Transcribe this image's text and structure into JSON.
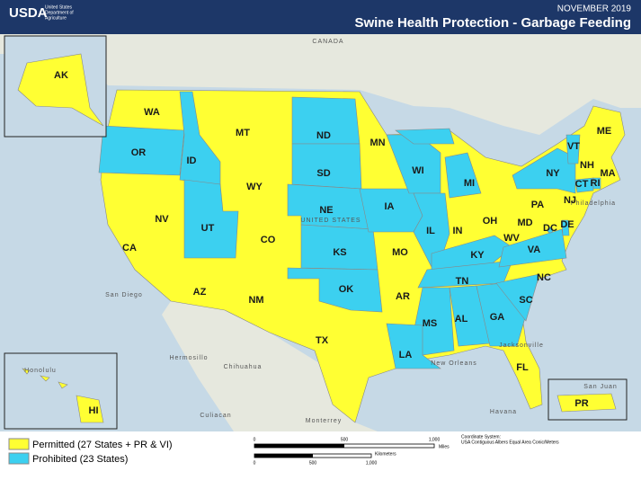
{
  "header": {
    "logo": "USDA",
    "agency": [
      "United States",
      "Department of",
      "Agriculture"
    ],
    "date": "NOVEMBER 2019",
    "title": "Swine Health Protection - Garbage Feeding"
  },
  "places": [
    "CANADA",
    "UNITED STATES",
    "Honolulu",
    "San Juan",
    "Monterrey",
    "Chihuahua",
    "Culiacan",
    "Hermosillo",
    "Havana",
    "New Orleans",
    "Jacksonville",
    "Philadelphia",
    "San Diego"
  ],
  "states": [
    "AK",
    "WA",
    "OR",
    "ID",
    "MT",
    "ND",
    "MN",
    "WY",
    "SD",
    "WI",
    "MI",
    "NY",
    "VT",
    "NH",
    "ME",
    "MA",
    "CT",
    "RI",
    "NJ",
    "PA",
    "NV",
    "UT",
    "CO",
    "NE",
    "IA",
    "IL",
    "IN",
    "OH",
    "MD",
    "DE",
    "DC",
    "WV",
    "VA",
    "KS",
    "MO",
    "KY",
    "CA",
    "AZ",
    "NM",
    "OK",
    "AR",
    "TN",
    "NC",
    "SC",
    "MS",
    "AL",
    "GA",
    "TX",
    "LA",
    "FL",
    "HI",
    "PR"
  ],
  "legend": [
    {
      "label": "Permitted (27 States + PR & VI)",
      "color": "#ffff33"
    },
    {
      "label": "Prohibited (23 States)",
      "color": "#3cd0f0"
    }
  ],
  "scale": {
    "miles": [
      "0",
      "500",
      "1,000",
      "Miles"
    ],
    "kilometers": [
      "0",
      "500",
      "1,000",
      "Kilometers"
    ]
  },
  "coordinate_system": [
    "Coordinate System:",
    "USA Contiguous Albers Equal Area Conic/Meters"
  ]
}
